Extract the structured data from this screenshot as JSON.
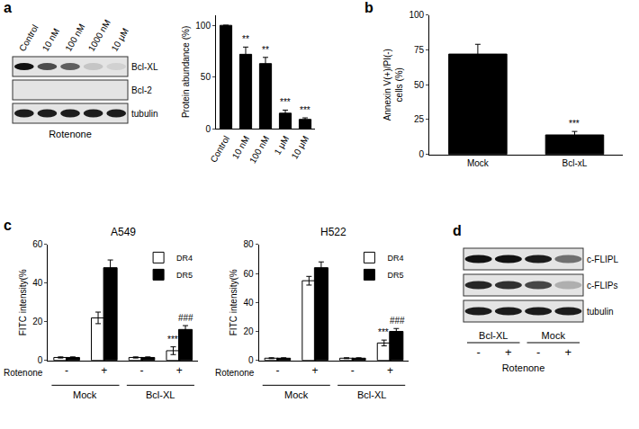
{
  "panel_labels": [
    "a",
    "b",
    "c",
    "d"
  ],
  "blot_a": {
    "lanes": [
      "Control",
      "10 nM",
      "100 nM",
      "1000 nM",
      "10 μM"
    ],
    "bands": [
      "Bcl-XL",
      "Bcl-2",
      "tubulin"
    ],
    "xlabel": "Rotenone"
  },
  "blot_d": {
    "bands": [
      "c-FLIPL",
      "c-FLIPs",
      "tubulin"
    ],
    "lanes": [
      "-",
      "+",
      "-",
      "+"
    ],
    "groups": [
      "Bcl-XL",
      "Mock"
    ],
    "xlabel": "Rotenone"
  },
  "chart_data": [
    {
      "type": "bar",
      "ylabel": "Protein abundance (%)",
      "categories": [
        "Control",
        "10 nM",
        "100 nM",
        "1 μM",
        "10 μM"
      ],
      "values": [
        100,
        72,
        63,
        15,
        9
      ],
      "errors": [
        0,
        7,
        6,
        3,
        1.5
      ],
      "significance": [
        null,
        "**",
        "**",
        "***",
        "***"
      ],
      "color": "#000000",
      "ylim": [
        0,
        110
      ],
      "yticks": [
        0,
        50,
        100
      ]
    },
    {
      "type": "bar",
      "ylabel": [
        "Annexin V(+)/PI(-)",
        "cells (%)"
      ],
      "categories": [
        "Mock",
        "Bcl-xL"
      ],
      "values": [
        72,
        14
      ],
      "errors": [
        7,
        2.5
      ],
      "significance": [
        null,
        "***"
      ],
      "color": "#000000",
      "ylim": [
        0,
        100
      ],
      "yticks": [
        0,
        25,
        50,
        75,
        100
      ]
    },
    {
      "type": "bar",
      "title": "A549",
      "ylabel": "FITC intensity(%",
      "xlabel": "Rotenone",
      "categories": [
        "-",
        "+",
        "-",
        "+"
      ],
      "groups": [
        "Mock",
        "Bcl-XL"
      ],
      "series": [
        {
          "name": "DR4",
          "color": "#ffffff",
          "values": [
            1.5,
            22,
            1.5,
            5
          ],
          "errors": [
            0.3,
            3,
            0.3,
            2
          ],
          "significance": [
            null,
            null,
            null,
            "***"
          ]
        },
        {
          "name": "DR5",
          "color": "#000000",
          "values": [
            1.5,
            48,
            1.5,
            16
          ],
          "errors": [
            0.3,
            4,
            0.3,
            2
          ],
          "significance": [
            null,
            null,
            null,
            "###"
          ]
        }
      ],
      "ylim": [
        0,
        60
      ],
      "yticks": [
        0,
        20,
        40,
        60
      ],
      "legend": "upper right"
    },
    {
      "type": "bar",
      "title": "H522",
      "ylabel": "FITC intensity(%",
      "xlabel": "Rotenone",
      "categories": [
        "-",
        "+",
        "-",
        "+"
      ],
      "groups": [
        "Mock",
        "Bcl-XL"
      ],
      "series": [
        {
          "name": "DR4",
          "color": "#ffffff",
          "values": [
            1.5,
            55,
            1.5,
            12
          ],
          "errors": [
            0.3,
            3,
            0.3,
            2
          ],
          "significance": [
            null,
            null,
            null,
            "***"
          ]
        },
        {
          "name": "DR5",
          "color": "#000000",
          "values": [
            1.5,
            64,
            1.5,
            20
          ],
          "errors": [
            0.3,
            4,
            0.3,
            2
          ],
          "significance": [
            null,
            null,
            null,
            "###"
          ]
        }
      ],
      "ylim": [
        0,
        80
      ],
      "yticks": [
        0,
        20,
        40,
        60,
        80
      ],
      "legend": "upper right"
    }
  ]
}
